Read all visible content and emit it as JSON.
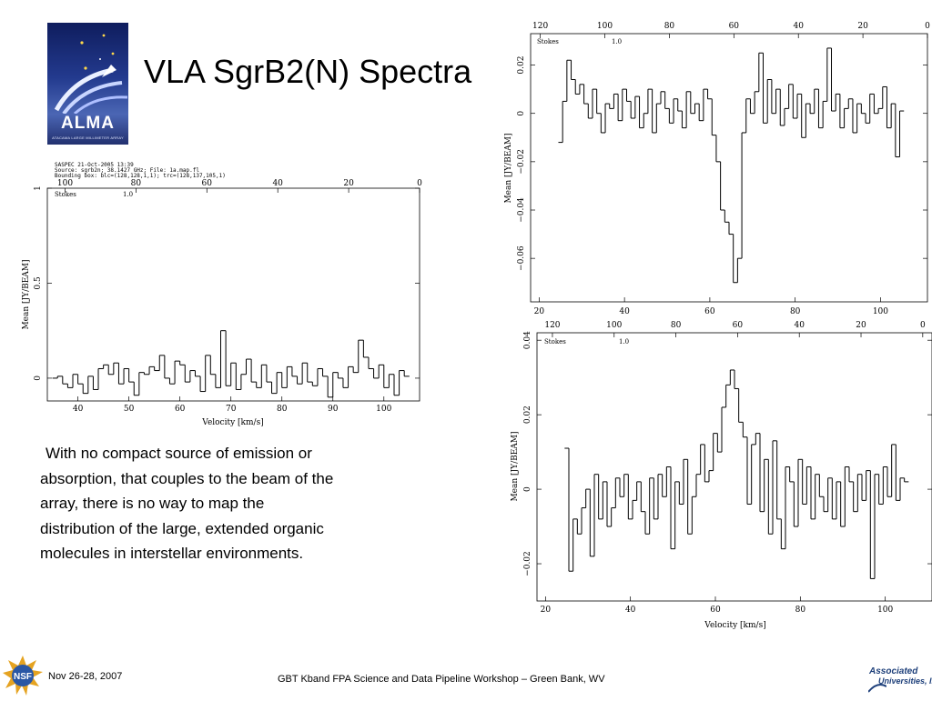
{
  "slide": {
    "title": "VLA SgrB2(N) Spectra",
    "body": [
      "With no compact source of emission or",
      "absorption, that couples to the beam of the",
      "array, there is no way to map the",
      "distribution of the large, extended organic",
      "molecules in interstellar environments."
    ],
    "footer_date": "Nov 26-28,  2007",
    "footer_center": "GBT Kband FPA Science and Data Pipeline Workshop – Green Bank, WV"
  },
  "logos": {
    "alma_word": "ALMA",
    "alma_sub": "ATACAMA LARGE MILLIMETER ARRAY",
    "nsf_text": "NSF",
    "au_line1": "Associated",
    "au_line2": "Universities, Inc."
  },
  "colors": {
    "alma_blue": "#1a2a6e",
    "au_blue": "#1d3f7a",
    "plot_line": "#000000"
  },
  "chart_data": [
    {
      "type": "line",
      "header": [
        "SASPEC 21-Oct-2005 13:39",
        "Source: sgrb2n; 38.1427 GHz; File: 1a.map.fl",
        "Bounding box: blc=(128,128,1,1); trc=(128,137,105,1)"
      ],
      "stokes_label": "Stokes",
      "stokes_value": "1.0",
      "xlabel": "Velocity [km/s]",
      "ylabel": "Mean [JY/BEAM]",
      "xlim": [
        34,
        107
      ],
      "ylim": [
        -0.12,
        1
      ],
      "x_ticks": [
        "40",
        "50",
        "60",
        "70",
        "80",
        "90",
        "100"
      ],
      "top_ticks": [
        "100",
        "80",
        "60",
        "40",
        "20",
        "0"
      ],
      "y_ticks": [
        "0",
        "0.5",
        "1"
      ],
      "x": [
        35.5,
        36.5,
        37.5,
        38.5,
        39.5,
        40.5,
        41.5,
        42.5,
        43.5,
        44.5,
        45.5,
        46.5,
        47.5,
        48.5,
        49.5,
        50.5,
        51.5,
        52.5,
        53.5,
        54.5,
        55.5,
        56.5,
        57.5,
        58.5,
        59.5,
        60.5,
        61.5,
        62.5,
        63.5,
        64.5,
        65.5,
        66.5,
        67.5,
        68.5,
        69.5,
        70.5,
        71.5,
        72.5,
        73.5,
        74.5,
        75.5,
        76.5,
        77.5,
        78.5,
        79.5,
        80.5,
        81.5,
        82.5,
        83.5,
        84.5,
        85.5,
        86.5,
        87.5,
        88.5,
        89.5,
        90.5,
        91.5,
        92.5,
        93.5,
        94.5,
        95.5,
        96.5,
        97.5,
        98.5,
        99.5,
        100.5,
        101.5,
        102.5,
        103.5,
        104.5
      ],
      "values": [
        0.0,
        0.01,
        -0.03,
        -0.05,
        0.02,
        -0.03,
        -0.08,
        0.01,
        -0.06,
        0.05,
        0.07,
        0.02,
        0.08,
        -0.03,
        0.05,
        -0.02,
        -0.09,
        0.03,
        0.02,
        0.06,
        0.04,
        0.12,
        0.0,
        -0.03,
        0.09,
        0.07,
        -0.02,
        0.04,
        0.01,
        -0.07,
        0.12,
        0.02,
        -0.05,
        0.25,
        -0.04,
        0.08,
        -0.06,
        0.02,
        0.1,
        -0.02,
        -0.05,
        0.07,
        -0.02,
        -0.08,
        0.03,
        -0.05,
        0.06,
        0.01,
        -0.03,
        0.08,
        -0.02,
        -0.04,
        0.05,
        0.01,
        -0.1,
        0.03,
        0.0,
        -0.05,
        0.06,
        0.03,
        0.2,
        0.11,
        0.05,
        0.0,
        0.07,
        -0.05,
        0.02,
        -0.09,
        0.04,
        0.01
      ]
    },
    {
      "type": "line",
      "stokes_label": "Stokes",
      "stokes_value": "1.0",
      "xlabel": "",
      "ylabel": "Mean [JY/BEAM]",
      "xlim": [
        18,
        111
      ],
      "ylim": [
        -0.078,
        0.033
      ],
      "x_ticks": [
        "20",
        "40",
        "60",
        "80",
        "100"
      ],
      "top_ticks": [
        "120",
        "100",
        "80",
        "60",
        "40",
        "20",
        "0"
      ],
      "y_ticks": [
        "0.02",
        "0",
        "−0.02",
        "−0.04",
        "−0.06"
      ],
      "x": [
        25,
        26,
        27,
        28,
        29,
        30,
        31,
        32,
        33,
        34,
        35,
        36,
        37,
        38,
        39,
        40,
        41,
        42,
        43,
        44,
        45,
        46,
        47,
        48,
        49,
        50,
        51,
        52,
        53,
        54,
        55,
        56,
        57,
        58,
        59,
        60,
        61,
        62,
        63,
        64,
        65,
        66,
        67,
        68,
        69,
        70,
        71,
        72,
        73,
        74,
        75,
        76,
        77,
        78,
        79,
        80,
        81,
        82,
        83,
        84,
        85,
        86,
        87,
        88,
        89,
        90,
        91,
        92,
        93,
        94,
        95,
        96,
        97,
        98,
        99,
        100,
        101,
        102,
        103,
        104,
        105
      ],
      "values": [
        -0.012,
        0.005,
        0.022,
        0.014,
        0.008,
        0.012,
        0.004,
        -0.002,
        0.01,
        0.0,
        -0.008,
        0.004,
        0.002,
        0.008,
        -0.003,
        0.01,
        0.005,
        -0.002,
        0.007,
        -0.006,
        0.0,
        0.01,
        -0.008,
        0.004,
        0.009,
        0.002,
        -0.004,
        0.006,
        0.001,
        -0.006,
        0.009,
        0.0,
        0.004,
        -0.003,
        0.01,
        0.006,
        -0.009,
        -0.02,
        -0.04,
        -0.045,
        -0.05,
        -0.07,
        -0.06,
        -0.008,
        0.006,
        0.0,
        0.009,
        0.025,
        -0.004,
        0.014,
        0.0,
        0.01,
        -0.005,
        0.002,
        0.012,
        -0.002,
        0.008,
        -0.01,
        0.004,
        0.0,
        0.01,
        -0.006,
        0.005,
        0.027,
        0.001,
        0.008,
        -0.006,
        0.002,
        0.006,
        -0.008,
        0.004,
        0.0,
        -0.004,
        0.008,
        0.0,
        0.002,
        0.011,
        -0.006,
        0.004,
        -0.018,
        0.001
      ]
    },
    {
      "type": "line",
      "stokes_label": "Stokes",
      "stokes_value": "1.0",
      "xlabel": "Velocity [km/s]",
      "ylabel": "Mean [JY/BEAM]",
      "xlim": [
        18,
        111
      ],
      "ylim": [
        -0.03,
        0.042
      ],
      "x_ticks": [
        "20",
        "40",
        "60",
        "80",
        "100"
      ],
      "top_ticks": [
        "120",
        "100",
        "80",
        "60",
        "40",
        "20",
        "0"
      ],
      "y_ticks": [
        "0.04",
        "0.02",
        "0",
        "−0.02"
      ],
      "x": [
        25,
        26,
        27,
        28,
        29,
        30,
        31,
        32,
        33,
        34,
        35,
        36,
        37,
        38,
        39,
        40,
        41,
        42,
        43,
        44,
        45,
        46,
        47,
        48,
        49,
        50,
        51,
        52,
        53,
        54,
        55,
        56,
        57,
        58,
        59,
        60,
        61,
        62,
        63,
        64,
        65,
        66,
        67,
        68,
        69,
        70,
        71,
        72,
        73,
        74,
        75,
        76,
        77,
        78,
        79,
        80,
        81,
        82,
        83,
        84,
        85,
        86,
        87,
        88,
        89,
        90,
        91,
        92,
        93,
        94,
        95,
        96,
        97,
        98,
        99,
        100,
        101,
        102,
        103,
        104,
        105
      ],
      "values": [
        0.011,
        -0.022,
        -0.008,
        -0.012,
        -0.005,
        0.0,
        -0.018,
        0.004,
        -0.008,
        0.002,
        -0.01,
        -0.005,
        0.003,
        -0.002,
        0.004,
        -0.008,
        -0.003,
        0.002,
        -0.006,
        -0.012,
        0.003,
        -0.008,
        0.004,
        -0.002,
        0.006,
        -0.016,
        0.002,
        -0.004,
        0.008,
        -0.012,
        -0.002,
        0.004,
        0.012,
        0.002,
        0.005,
        0.015,
        0.01,
        0.022,
        0.028,
        0.032,
        0.027,
        0.018,
        0.014,
        -0.004,
        0.012,
        0.015,
        -0.006,
        0.008,
        -0.012,
        0.013,
        -0.008,
        -0.016,
        0.006,
        0.002,
        -0.01,
        0.008,
        -0.004,
        0.006,
        -0.008,
        0.004,
        -0.002,
        -0.006,
        0.003,
        -0.008,
        0.002,
        -0.01,
        0.006,
        0.002,
        -0.006,
        0.004,
        -0.003,
        0.005,
        -0.024,
        0.004,
        -0.004,
        0.006,
        -0.002,
        0.012,
        -0.003,
        0.003,
        0.002
      ]
    }
  ]
}
